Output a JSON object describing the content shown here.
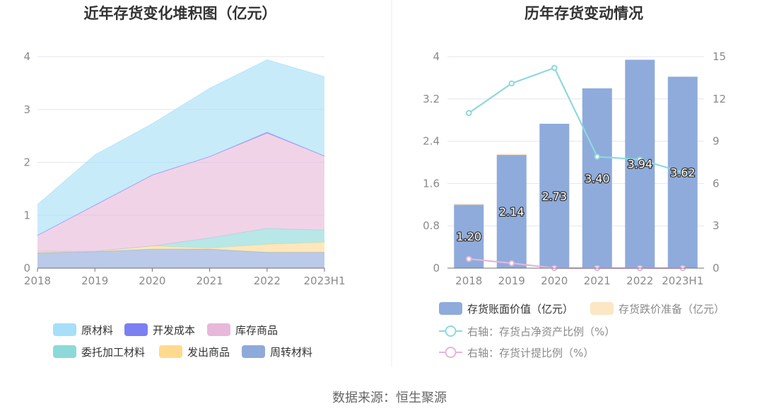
{
  "source_text": "数据来源：恒生聚源",
  "chart_data": [
    {
      "type": "area",
      "stacked": true,
      "title": "近年存货变化堆积图（亿元）",
      "categories": [
        "2018",
        "2019",
        "2020",
        "2021",
        "2022",
        "2023H1"
      ],
      "ylim": [
        0,
        4
      ],
      "yticks": [
        "0",
        "1",
        "2",
        "3",
        "4"
      ],
      "grid": true,
      "legend_position": "bottom",
      "series": [
        {
          "name": "周转材料",
          "color": "#8fa9da",
          "values": [
            0.29,
            0.31,
            0.36,
            0.36,
            0.3,
            0.3
          ]
        },
        {
          "name": "发出商品",
          "color": "#ffd98e",
          "values": [
            0.03,
            0.01,
            0.06,
            0.02,
            0.15,
            0.19
          ]
        },
        {
          "name": "委托加工材料",
          "color": "#8dd9d9",
          "values": [
            0.0,
            0.0,
            0.0,
            0.19,
            0.3,
            0.23
          ]
        },
        {
          "name": "库存商品",
          "color": "#e8b8da",
          "values": [
            0.3,
            0.87,
            1.34,
            1.54,
            1.8,
            1.4
          ]
        },
        {
          "name": "开发成本",
          "color": "#7b7ff2",
          "values": [
            0.0,
            0.0,
            0.0,
            0.0,
            0.02,
            0.0
          ]
        },
        {
          "name": "原材料",
          "color": "#a6dff7",
          "values": [
            0.58,
            0.95,
            0.97,
            1.29,
            1.37,
            1.5
          ]
        }
      ],
      "legend_order": [
        "原材料",
        "开发成本",
        "库存商品",
        "委托加工材料",
        "发出商品",
        "周转材料"
      ]
    },
    {
      "type": "bar",
      "title": "历年存货变动情况",
      "categories": [
        "2018",
        "2019",
        "2020",
        "2021",
        "2022",
        "2023H1"
      ],
      "ylim": [
        0,
        4
      ],
      "yticks": [
        "0",
        "0.8",
        "1.6",
        "2.4",
        "3.2",
        "4"
      ],
      "y2lim": [
        0,
        15
      ],
      "y2ticks": [
        "0",
        "3",
        "6",
        "9",
        "12",
        "15"
      ],
      "grid": true,
      "legend_position": "bottom",
      "series": [
        {
          "name": "存货账面价值（亿元）",
          "type": "bar",
          "axis": "left",
          "color": "#8eabdb",
          "values": [
            1.2,
            2.14,
            2.73,
            3.4,
            3.94,
            3.62
          ],
          "labels": [
            "1.20",
            "2.14",
            "2.73",
            "3.40",
            "3.94",
            "3.62"
          ]
        },
        {
          "name": "存货跌价准备（亿元）",
          "type": "bar",
          "axis": "left",
          "color": "#fde6c3",
          "values": [
            0.01,
            0.01,
            0.0,
            0.0,
            0.0,
            0.0
          ]
        },
        {
          "name": "右轴：存货占净资产比例（%）",
          "type": "line",
          "axis": "right",
          "color": "#8fd8dc",
          "values": [
            11.0,
            13.1,
            14.2,
            7.9,
            7.7,
            6.8
          ]
        },
        {
          "name": "右轴：存货计提比例（%）",
          "type": "line",
          "axis": "right",
          "color": "#e6b5d8",
          "values": [
            0.65,
            0.35,
            0.0,
            0.0,
            0.0,
            0.0
          ]
        }
      ]
    }
  ]
}
